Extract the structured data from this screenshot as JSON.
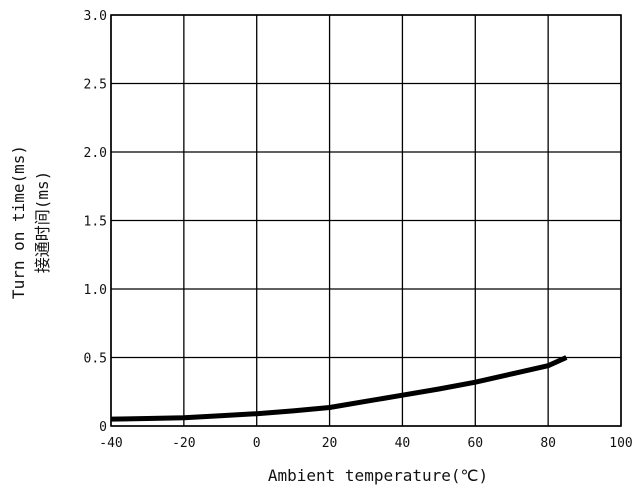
{
  "chart_data": {
    "type": "line",
    "title": "",
    "xlabel": "Ambient temperature(℃)",
    "ylabel_lines": [
      "Turn on time(ms)",
      "接通时间(ms)"
    ],
    "xlim": [
      -40,
      100
    ],
    "ylim": [
      0,
      3.0
    ],
    "x_ticks": [
      -40,
      -20,
      0,
      20,
      40,
      60,
      80,
      100
    ],
    "x_tick_labels": [
      "-40",
      "-20",
      "0",
      "20",
      "40",
      "60",
      "80",
      "100"
    ],
    "y_ticks": [
      0,
      0.5,
      1.0,
      1.5,
      2.0,
      2.5,
      3.0
    ],
    "y_tick_labels": [
      "0",
      "0.5",
      "1.0",
      "1.5",
      "2.0",
      "2.5",
      "3.0"
    ],
    "grid": true,
    "series": [
      {
        "x": [
          -40,
          -30,
          -20,
          -10,
          0,
          10,
          20,
          30,
          40,
          50,
          60,
          70,
          80,
          85
        ],
        "y": [
          0.05,
          0.055,
          0.06,
          0.075,
          0.09,
          0.11,
          0.135,
          0.18,
          0.225,
          0.27,
          0.32,
          0.38,
          0.44,
          0.5
        ]
      }
    ],
    "line_color": "#000000"
  }
}
